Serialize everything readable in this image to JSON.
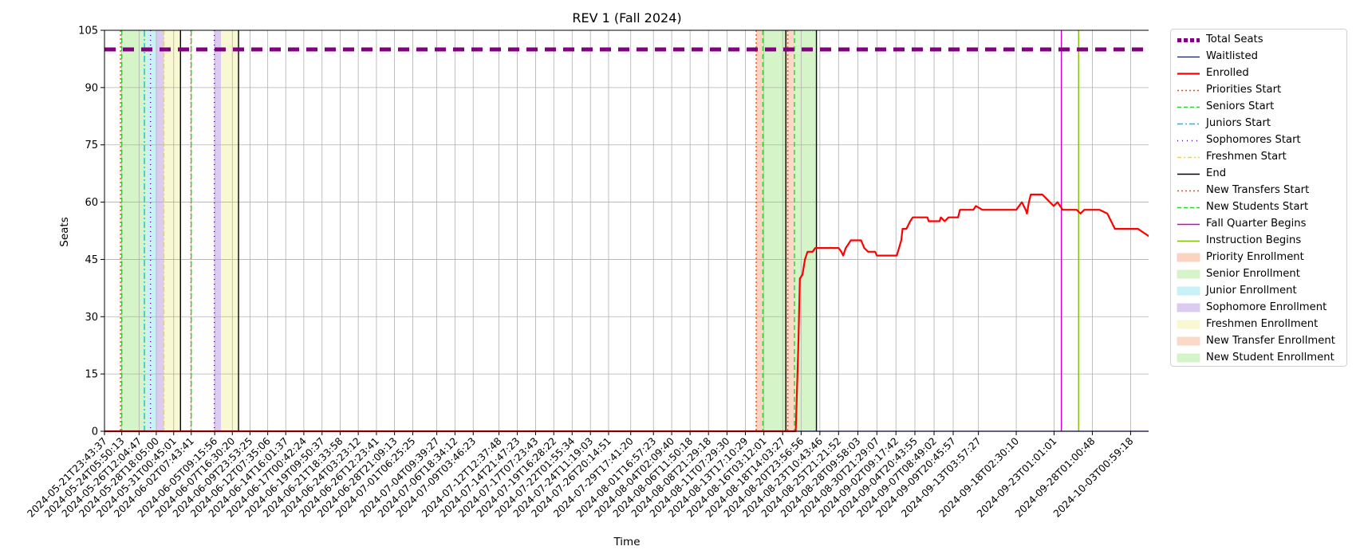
{
  "chart_data": {
    "type": "line",
    "title": "REV 1 (Fall 2024)",
    "xlabel": "Time",
    "ylabel": "Seats",
    "ylim": [
      0,
      105
    ],
    "yticks": [
      0,
      15,
      30,
      45,
      60,
      75,
      90,
      105
    ],
    "grid": true,
    "legend_position": "outside-right",
    "x_range": [
      "2024-05-21T23:43:37",
      "2024-10-05T12:00:00"
    ],
    "xticks": [
      "2024-05-21T23:43:37",
      "2024-05-24T05:50:13",
      "2024-05-26T12:04:47",
      "2024-05-28T18:05:00",
      "2024-05-31T00:45:01",
      "2024-06-02T07:43:41",
      "2024-06-05T09:15:56",
      "2024-06-07T16:30:20",
      "2024-06-09T23:53:25",
      "2024-06-12T07:35:06",
      "2024-06-14T16:01:37",
      "2024-06-17T00:42:24",
      "2024-06-19T09:50:37",
      "2024-06-21T18:33:58",
      "2024-06-24T03:23:12",
      "2024-06-26T12:23:41",
      "2024-06-28T21:09:13",
      "2024-07-01T06:25:25",
      "2024-07-04T09:39:27",
      "2024-07-06T18:34:12",
      "2024-07-09T03:46:23",
      "2024-07-12T12:37:48",
      "2024-07-14T21:47:23",
      "2024-07-17T07:23:43",
      "2024-07-19T16:28:22",
      "2024-07-22T01:55:34",
      "2024-07-24T11:19:03",
      "2024-07-26T20:14:51",
      "2024-07-29T17:41:20",
      "2024-08-01T16:57:23",
      "2024-08-04T02:09:40",
      "2024-08-06T11:50:18",
      "2024-08-08T21:29:18",
      "2024-08-11T07:29:30",
      "2024-08-13T17:10:29",
      "2024-08-16T03:12:01",
      "2024-08-18T14:03:27",
      "2024-08-20T23:56:56",
      "2024-08-23T10:43:46",
      "2024-08-25T21:21:52",
      "2024-08-28T09:58:03",
      "2024-08-30T21:29:07",
      "2024-09-02T09:17:42",
      "2024-09-04T20:43:55",
      "2024-09-07T08:49:02",
      "2024-09-09T20:45:57",
      "2024-09-13T03:57:27",
      "2024-09-18T02:30:10",
      "2024-09-23T01:01:01",
      "2024-09-28T01:00:48",
      "2024-10-03T00:59:18"
    ],
    "colors": {
      "total": "#800080",
      "waitlisted": "#0000ff",
      "enrolled": "#ff0000",
      "priorities": "#ff4500",
      "seniors": "#32cd32",
      "juniors": "#00bfff",
      "sophomores": "#4b0082",
      "freshmen": "#ffd700",
      "end": "#000000",
      "new_transfers": "#ff4500",
      "new_students": "#32cd32",
      "fall_quarter": "#cc00cc",
      "instruction": "#7fbf00",
      "priority_fill": "#fbd3c2",
      "senior_fill": "#d5f5c9",
      "junior_fill": "#c9f2f7",
      "sophomore_fill": "#dccbf1",
      "freshmen_fill": "#f8f8d2",
      "transfer_fill": "#fbd9c9",
      "new_student_fill": "#d5f5c9"
    },
    "periods": [
      {
        "name": "Senior Enrollment",
        "start": "2024-05-24T05:50:13",
        "end": "2024-05-27T12:00:00",
        "fill": "senior_fill"
      },
      {
        "name": "Junior Enrollment",
        "start": "2024-05-27T12:00:00",
        "end": "2024-05-28T18:05:00",
        "fill": "junior_fill"
      },
      {
        "name": "Sophomore Enrollment",
        "start": "2024-05-28T18:05:00",
        "end": "2024-05-29T18:00:00",
        "fill": "sophomore_fill"
      },
      {
        "name": "Freshmen Enrollment",
        "start": "2024-05-29T18:00:00",
        "end": "2024-05-31T22:00:00",
        "fill": "freshmen_fill"
      },
      {
        "name": "Sophomore Enrollment",
        "start": "2024-06-05T08:00:00",
        "end": "2024-06-06T05:00:00",
        "fill": "sophomore_fill"
      },
      {
        "name": "Freshmen Enrollment",
        "start": "2024-06-06T05:00:00",
        "end": "2024-06-08T12:00:00",
        "fill": "freshmen_fill"
      },
      {
        "name": "Priority Enrollment",
        "start": "2024-08-15T03:00:00",
        "end": "2024-08-16T00:00:00",
        "fill": "priority_fill"
      },
      {
        "name": "New Student Enrollment",
        "start": "2024-08-16T00:00:00",
        "end": "2024-08-19T00:00:00",
        "fill": "new_student_fill"
      },
      {
        "name": "New Transfer Enrollment",
        "start": "2024-08-19T00:00:00",
        "end": "2024-08-20T03:00:00",
        "fill": "transfer_fill"
      },
      {
        "name": "New Student Enrollment",
        "start": "2024-08-20T03:00:00",
        "end": "2024-08-23T00:00:00",
        "fill": "new_student_fill"
      }
    ],
    "vlines": [
      {
        "name": "Priorities Start",
        "x": "2024-05-24T02:00:00",
        "color": "priorities",
        "dash": "2,3"
      },
      {
        "name": "Seniors Start",
        "x": "2024-05-24T05:50:13",
        "color": "seniors",
        "dash": "6,4"
      },
      {
        "name": "Juniors Start",
        "x": "2024-05-27T05:00:00",
        "color": "juniors",
        "dash": "8,3,2,3"
      },
      {
        "name": "Sophomores Start",
        "x": "2024-05-28T00:00:00",
        "color": "sophomores",
        "dash": "1,5"
      },
      {
        "name": "Freshmen Start",
        "x": "2024-05-29T18:00:00",
        "color": "freshmen",
        "dash": "6,3,2,3"
      },
      {
        "name": "End",
        "x": "2024-05-31T22:00:00",
        "color": "end",
        "dash": ""
      },
      {
        "name": "Priorities Start",
        "x": "2024-06-02T07:00:00",
        "color": "priorities",
        "dash": "2,3"
      },
      {
        "name": "Seniors Start",
        "x": "2024-06-02T07:43:41",
        "color": "seniors",
        "dash": "6,4"
      },
      {
        "name": "Sophomores Start",
        "x": "2024-06-05T08:00:00",
        "color": "sophomores",
        "dash": "1,5"
      },
      {
        "name": "End",
        "x": "2024-06-08T12:00:00",
        "color": "end",
        "dash": ""
      },
      {
        "name": "New Transfers Start",
        "x": "2024-08-15T03:00:00",
        "color": "new_transfers",
        "dash": "2,3"
      },
      {
        "name": "New Students Start",
        "x": "2024-08-16T00:00:00",
        "color": "new_students",
        "dash": "6,4"
      },
      {
        "name": "End",
        "x": "2024-08-19T00:00:00",
        "color": "end",
        "dash": ""
      },
      {
        "name": "New Transfers Start",
        "x": "2024-08-19T06:00:00",
        "color": "new_transfers",
        "dash": "2,3"
      },
      {
        "name": "New Students Start",
        "x": "2024-08-20T03:00:00",
        "color": "new_students",
        "dash": "6,4"
      },
      {
        "name": "End",
        "x": "2024-08-23T00:00:00",
        "color": "end",
        "dash": ""
      },
      {
        "name": "Fall Quarter Begins",
        "x": "2024-09-24T00:00:00",
        "color": "fall_quarter",
        "dash": ""
      },
      {
        "name": "Instruction Begins",
        "x": "2024-09-26T06:00:00",
        "color": "instruction",
        "dash": ""
      }
    ],
    "series": [
      {
        "name": "Total Seats",
        "color": "total",
        "width": 5,
        "dash": "14,9",
        "points": [
          [
            "2024-05-21T23:43:37",
            100
          ],
          [
            "2024-10-05T12:00:00",
            100
          ]
        ]
      },
      {
        "name": "Waitlisted",
        "color": "waitlisted",
        "width": 1.2,
        "dash": "",
        "points": [
          [
            "2024-05-21T23:43:37",
            0
          ],
          [
            "2024-10-05T12:00:00",
            0
          ]
        ]
      },
      {
        "name": "Enrolled",
        "color": "enrolled",
        "width": 2.2,
        "dash": "",
        "points": [
          [
            "2024-05-21T23:43:37",
            0
          ],
          [
            "2024-08-20T07:00:00",
            0
          ],
          [
            "2024-08-20T15:00:00",
            22
          ],
          [
            "2024-08-20T20:00:00",
            40
          ],
          [
            "2024-08-21T04:00:00",
            41
          ],
          [
            "2024-08-21T12:00:00",
            45
          ],
          [
            "2024-08-21T20:00:00",
            47
          ],
          [
            "2024-08-22T12:00:00",
            47
          ],
          [
            "2024-08-22T20:00:00",
            48
          ],
          [
            "2024-08-25T21:21:52",
            48
          ],
          [
            "2024-08-26T06:00:00",
            47
          ],
          [
            "2024-08-26T12:00:00",
            46
          ],
          [
            "2024-08-26T20:00:00",
            48
          ],
          [
            "2024-08-27T12:00:00",
            50
          ],
          [
            "2024-08-28T20:00:00",
            50
          ],
          [
            "2024-08-29T06:00:00",
            48
          ],
          [
            "2024-08-29T18:00:00",
            47
          ],
          [
            "2024-08-30T16:00:00",
            47
          ],
          [
            "2024-08-30T21:29:07",
            46
          ],
          [
            "2024-09-02T12:00:00",
            46
          ],
          [
            "2024-09-03T02:00:00",
            50
          ],
          [
            "2024-09-03T06:00:00",
            53
          ],
          [
            "2024-09-03T18:00:00",
            53
          ],
          [
            "2024-09-04T06:00:00",
            55
          ],
          [
            "2024-09-04T14:00:00",
            56
          ],
          [
            "2024-09-06T12:00:00",
            56
          ],
          [
            "2024-09-06T16:00:00",
            55
          ],
          [
            "2024-09-08T02:00:00",
            55
          ],
          [
            "2024-09-08T06:00:00",
            56
          ],
          [
            "2024-09-08T18:00:00",
            55
          ],
          [
            "2024-09-09T06:00:00",
            56
          ],
          [
            "2024-09-10T12:00:00",
            56
          ],
          [
            "2024-09-10T18:00:00",
            58
          ],
          [
            "2024-09-12T12:00:00",
            58
          ],
          [
            "2024-09-12T20:00:00",
            59
          ],
          [
            "2024-09-13T16:00:00",
            58
          ],
          [
            "2024-09-18T02:30:10",
            58
          ],
          [
            "2024-09-18T20:00:00",
            60
          ],
          [
            "2024-09-19T08:00:00",
            58
          ],
          [
            "2024-09-19T12:00:00",
            57
          ],
          [
            "2024-09-19T18:00:00",
            60
          ],
          [
            "2024-09-20T00:00:00",
            62
          ],
          [
            "2024-09-21T12:00:00",
            62
          ],
          [
            "2024-09-22T00:00:00",
            61
          ],
          [
            "2024-09-22T12:00:00",
            60
          ],
          [
            "2024-09-23T00:00:00",
            59
          ],
          [
            "2024-09-23T12:00:00",
            60
          ],
          [
            "2024-09-24T04:00:00",
            58
          ],
          [
            "2024-09-26T00:00:00",
            58
          ],
          [
            "2024-09-26T12:00:00",
            57
          ],
          [
            "2024-09-27T00:00:00",
            58
          ],
          [
            "2024-09-29T00:00:00",
            58
          ],
          [
            "2024-09-30T00:00:00",
            57
          ],
          [
            "2024-09-30T12:00:00",
            55
          ],
          [
            "2024-10-01T00:00:00",
            53
          ],
          [
            "2024-10-04T00:00:00",
            53
          ],
          [
            "2024-10-04T18:00:00",
            52
          ],
          [
            "2024-10-05T12:00:00",
            51
          ]
        ]
      }
    ],
    "legend": [
      {
        "label": "Total Seats",
        "kind": "line",
        "color": "total",
        "width": 5,
        "dash": "5,3"
      },
      {
        "label": "Waitlisted",
        "kind": "line",
        "color": "waitlisted",
        "width": 1.2,
        "dash": ""
      },
      {
        "label": "Enrolled",
        "kind": "line",
        "color": "enrolled",
        "width": 2.2,
        "dash": ""
      },
      {
        "label": "Priorities Start",
        "kind": "line",
        "color": "priorities",
        "width": 1.4,
        "dash": "2,3"
      },
      {
        "label": "Seniors Start",
        "kind": "line",
        "color": "seniors",
        "width": 1.4,
        "dash": "5,3"
      },
      {
        "label": "Juniors Start",
        "kind": "line",
        "color": "juniors",
        "width": 1.4,
        "dash": "7,3,2,3"
      },
      {
        "label": "Sophomores Start",
        "kind": "line",
        "color": "sophomores",
        "width": 1.4,
        "dash": "1,5"
      },
      {
        "label": "Freshmen Start",
        "kind": "line",
        "color": "freshmen",
        "width": 1.4,
        "dash": "5,3,2,3"
      },
      {
        "label": "End",
        "kind": "line",
        "color": "end",
        "width": 1.4,
        "dash": ""
      },
      {
        "label": "New Transfers Start",
        "kind": "line",
        "color": "new_transfers",
        "width": 1.4,
        "dash": "2,3"
      },
      {
        "label": "New Students Start",
        "kind": "line",
        "color": "new_students",
        "width": 1.4,
        "dash": "5,3"
      },
      {
        "label": "Fall Quarter Begins",
        "kind": "line",
        "color": "fall_quarter",
        "width": 1.4,
        "dash": ""
      },
      {
        "label": "Instruction Begins",
        "kind": "line",
        "color": "instruction",
        "width": 1.4,
        "dash": ""
      },
      {
        "label": "Priority Enrollment",
        "kind": "patch",
        "color": "priority_fill"
      },
      {
        "label": "Senior Enrollment",
        "kind": "patch",
        "color": "senior_fill"
      },
      {
        "label": "Junior Enrollment",
        "kind": "patch",
        "color": "junior_fill"
      },
      {
        "label": "Sophomore Enrollment",
        "kind": "patch",
        "color": "sophomore_fill"
      },
      {
        "label": "Freshmen Enrollment",
        "kind": "patch",
        "color": "freshmen_fill"
      },
      {
        "label": "New Transfer Enrollment",
        "kind": "patch",
        "color": "transfer_fill"
      },
      {
        "label": "New Student Enrollment",
        "kind": "patch",
        "color": "new_student_fill"
      }
    ]
  }
}
